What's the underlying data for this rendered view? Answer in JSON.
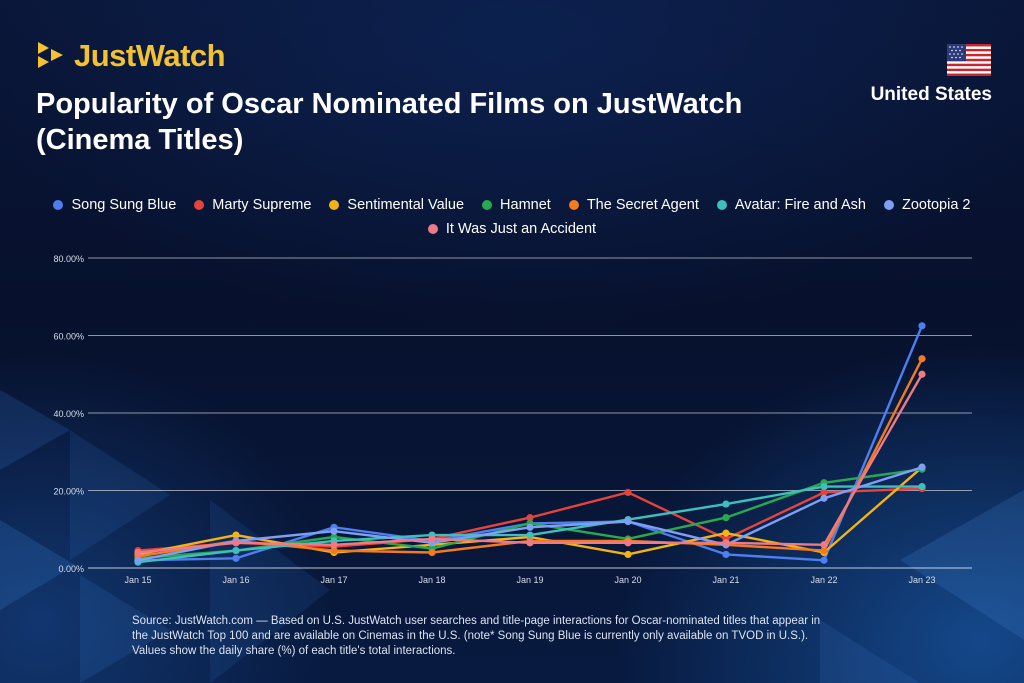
{
  "brand": {
    "name": "JustWatch",
    "logo_icon": "play-triangles-icon",
    "color": "#f2c232"
  },
  "header": {
    "title_line1": "Popularity of Oscar Nominated Films on JustWatch",
    "title_line2": "(Cinema Titles)",
    "country": "United States",
    "flag_icon": "us-flag-icon"
  },
  "colors": {
    "background": "#07112d",
    "text": "#ffffff",
    "grid": "rgba(255,255,255,0.55)"
  },
  "source": "Source: JustWatch.com — Based on U.S. JustWatch user searches and title-page interactions for Oscar-nominated titles that appear in the JustWatch Top 100 and are available on Cinemas in the U.S. (note* Song Sung Blue is currently only available on TVOD in U.S.). Values show the daily share (%) of each title's total interactions.",
  "chart_data": {
    "type": "line",
    "title": "Popularity of Oscar Nominated Films on JustWatch (Cinema Titles)",
    "xlabel": "",
    "ylabel": "",
    "categories": [
      "Jan 15",
      "Jan 16",
      "Jan 17",
      "Jan 18",
      "Jan 19",
      "Jan 20",
      "Jan 21",
      "Jan 22",
      "Jan 23"
    ],
    "yticks": [
      "0.00%",
      "20.00%",
      "40.00%",
      "60.00%",
      "80.00%"
    ],
    "ytick_values": [
      0,
      20,
      40,
      60,
      80
    ],
    "ylim": [
      0,
      80
    ],
    "grid": true,
    "legend_position": "top",
    "markers": true,
    "series": [
      {
        "name": "Song Sung Blue",
        "color": "#4e7ff0",
        "values": [
          2.0,
          2.5,
          10.5,
          7.0,
          11.5,
          12.0,
          3.5,
          2.0,
          62.5
        ]
      },
      {
        "name": "Marty Supreme",
        "color": "#e6433c",
        "values": [
          4.5,
          6.5,
          5.5,
          7.5,
          13.0,
          19.5,
          7.5,
          19.5,
          20.5
        ]
      },
      {
        "name": "Sentimental Value",
        "color": "#f2b316",
        "values": [
          3.5,
          8.5,
          4.0,
          6.0,
          8.0,
          3.5,
          9.0,
          4.0,
          26.0
        ]
      },
      {
        "name": "Hamnet",
        "color": "#29a84f",
        "values": [
          2.5,
          4.5,
          8.0,
          5.0,
          11.5,
          7.5,
          13.0,
          22.0,
          25.5
        ]
      },
      {
        "name": "The Secret Agent",
        "color": "#f47a1f",
        "values": [
          3.0,
          7.0,
          4.5,
          4.0,
          7.0,
          7.0,
          6.0,
          4.5,
          54.0
        ]
      },
      {
        "name": "Avatar: Fire and Ash",
        "color": "#3ebfbe",
        "values": [
          1.5,
          4.5,
          7.0,
          8.5,
          8.5,
          12.5,
          16.5,
          21.0,
          21.0
        ]
      },
      {
        "name": "Zootopia 2",
        "color": "#7f9ff5",
        "values": [
          2.0,
          7.0,
          9.5,
          6.5,
          10.5,
          12.0,
          6.0,
          18.0,
          26.0
        ]
      },
      {
        "name": "It Was Just an Accident",
        "color": "#ee7a86",
        "values": [
          4.0,
          6.5,
          6.0,
          7.5,
          6.5,
          6.5,
          6.5,
          6.0,
          50.0
        ]
      }
    ]
  }
}
